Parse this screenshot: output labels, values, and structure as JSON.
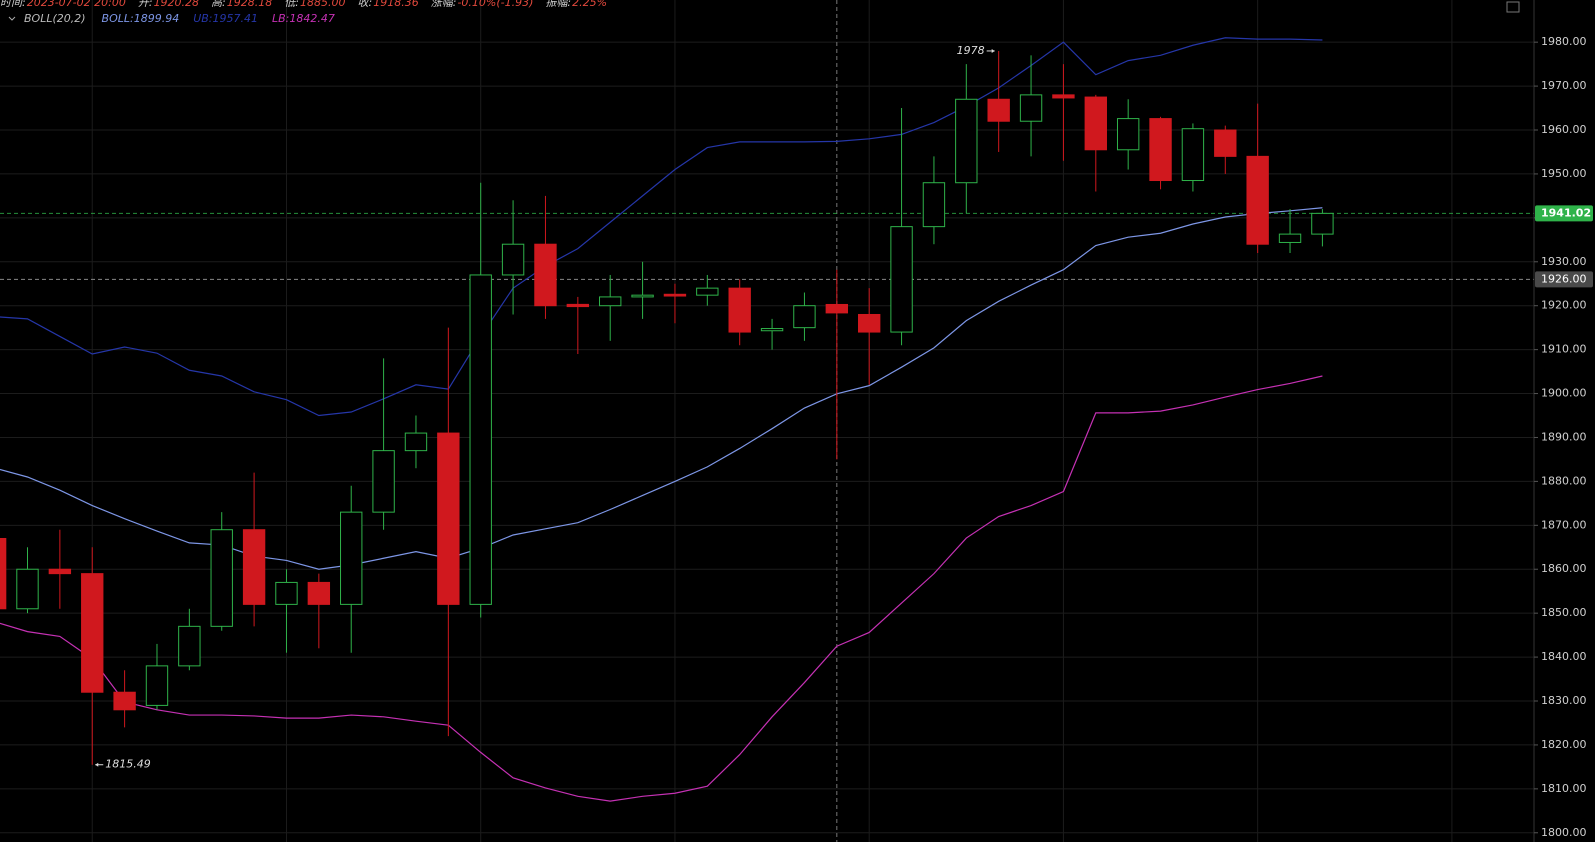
{
  "chart_data": {
    "type": "candlestick",
    "header": [
      [
        "时间:",
        "2023-07-02 20:00"
      ],
      [
        "开:",
        "1920.28"
      ],
      [
        "高:",
        "1928.18"
      ],
      [
        "低:",
        "1885.00"
      ],
      [
        "收:",
        "1918.36"
      ],
      [
        "涨幅:",
        "-0.10%(-1.93)"
      ],
      [
        "振幅:",
        "2.25%"
      ]
    ],
    "indicator": "BOLL(20,2)",
    "up_color": "#2fb34a",
    "down_color": "#d0181e",
    "open": [
      1867,
      1851,
      1860,
      1859,
      1832,
      1829,
      1838,
      1847,
      1869,
      1852,
      1857,
      1852,
      1873,
      1887,
      1891,
      1852,
      1927,
      1934,
      1920.3,
      1920,
      1922,
      1922.6,
      1922.4,
      1924,
      1914.3,
      1915,
      1920.28,
      1918,
      1914,
      1938,
      1948,
      1967,
      1962,
      1968,
      1967.5,
      1955.5,
      1962.6,
      1948.5,
      1960,
      1954,
      1934.4,
      1936.3
    ],
    "high": [
      1870,
      1865,
      1869,
      1865,
      1837,
      1843,
      1851,
      1873,
      1882,
      1860,
      1859,
      1879,
      1908,
      1895,
      1915,
      1948,
      1944,
      1945,
      1922,
      1927,
      1930,
      1925,
      1927,
      1926,
      1917,
      1923,
      1928.18,
      1924,
      1965,
      1954,
      1975,
      1978,
      1977,
      1975,
      1968,
      1967,
      1963,
      1961.5,
      1961,
      1966,
      1942,
      1942
    ],
    "low": [
      1848,
      1850,
      1851,
      1815.49,
      1824,
      1828,
      1837,
      1846,
      1847,
      1841,
      1842,
      1841,
      1869,
      1883,
      1822,
      1849,
      1918,
      1917,
      1909,
      1912,
      1917,
      1916,
      1920,
      1911,
      1910,
      1912,
      1885,
      1902,
      1911,
      1934,
      1941,
      1955,
      1954,
      1953,
      1946,
      1951,
      1946.5,
      1946,
      1950,
      1932,
      1932,
      1933.5
    ],
    "close": [
      1851,
      1860,
      1859,
      1832,
      1828,
      1838,
      1847,
      1869,
      1852,
      1857,
      1852,
      1873,
      1887,
      1891,
      1852,
      1927,
      1934,
      1920,
      1919.8,
      1922,
      1922.4,
      1922.2,
      1924,
      1914,
      1914.8,
      1920,
      1918.36,
      1914,
      1938,
      1948,
      1967,
      1962,
      1968,
      1967.3,
      1955.5,
      1962.6,
      1948.5,
      1960.3,
      1954,
      1934,
      1936.3,
      1941.02
    ],
    "bands": [
      {
        "legend": "BOLL:1899.94",
        "color": "#7d96e6",
        "values": [
          1883,
          1881,
          1878,
          1874.5,
          1871.5,
          1868.7,
          1866,
          1865.5,
          1863,
          1862,
          1860,
          1861,
          1862.5,
          1864,
          1862.5,
          1864.8,
          1867.8,
          1869.2,
          1870.6,
          1873.6,
          1876.8,
          1880,
          1883.3,
          1887.5,
          1892,
          1896.7,
          1899.94,
          1901.8,
          1906,
          1910.4,
          1916.6,
          1921,
          1924.7,
          1928.2,
          1933.7,
          1935.6,
          1936.5,
          1938.6,
          1940.2,
          1941,
          1941.6,
          1942.3
        ]
      },
      {
        "legend": "UB:1957.41",
        "color": "#2536a8",
        "values": [
          1917.5,
          1917,
          1913,
          1909,
          1910.6,
          1909.2,
          1905.3,
          1904,
          1900.4,
          1898.6,
          1895,
          1895.8,
          1898.8,
          1902,
          1901,
          1913,
          1924,
          1929,
          1933,
          1939,
          1945,
          1951,
          1956,
          1957.3,
          1957.3,
          1957.3,
          1957.41,
          1958,
          1959,
          1961.7,
          1965.4,
          1969.6,
          1974.7,
          1980,
          1972.6,
          1975.8,
          1977,
          1979.3,
          1981,
          1980.7,
          1980.7,
          1980.5
        ]
      },
      {
        "legend": "LB:1842.47",
        "color": "#c531b4",
        "values": [
          1848,
          1845.8,
          1844.7,
          1839.6,
          1829.8,
          1828,
          1826.8,
          1826.8,
          1826.6,
          1826.1,
          1826.1,
          1826.8,
          1826.4,
          1825.4,
          1824.5,
          1818.3,
          1812.5,
          1810.2,
          1808.3,
          1807.2,
          1808.3,
          1809,
          1810.6,
          1817.8,
          1826.4,
          1834.2,
          1842.47,
          1845.6,
          1852.3,
          1859,
          1867.1,
          1872,
          1874.5,
          1877.7,
          1895.6,
          1895.6,
          1896,
          1897.4,
          1899.2,
          1900.9,
          1902.3,
          1904
        ]
      }
    ],
    "ylim": [
      1797.9,
      1989.6
    ],
    "yticks": [
      {
        "value": 1800,
        "label": "1800.00"
      },
      {
        "value": 1810,
        "label": "1810.00"
      },
      {
        "value": 1820,
        "label": "1820.00"
      },
      {
        "value": 1830,
        "label": "1830.00"
      },
      {
        "value": 1840,
        "label": "1840.00"
      },
      {
        "value": 1850,
        "label": "1850.00"
      },
      {
        "value": 1860,
        "label": "1860.00"
      },
      {
        "value": 1870,
        "label": "1870.00"
      },
      {
        "value": 1880,
        "label": "1880.00"
      },
      {
        "value": 1890,
        "label": "1890.00"
      },
      {
        "value": 1900,
        "label": "1900.00"
      },
      {
        "value": 1910,
        "label": "1910.00"
      },
      {
        "value": 1920,
        "label": "1920.00"
      },
      {
        "value": 1930,
        "label": "1930.00"
      },
      {
        "value": 1940,
        "label": "1940.00"
      },
      {
        "value": 1950,
        "label": "1950.00"
      },
      {
        "value": 1960,
        "label": "1960.00"
      },
      {
        "value": 1970,
        "label": "1970.00"
      },
      {
        "value": 1980,
        "label": "1980.00"
      }
    ],
    "grid": true,
    "last_price": {
      "value": 1941.02,
      "label": "1941.02"
    },
    "crosshair_price": {
      "value": 1926,
      "label": "1926.00"
    },
    "high_mark": 1978,
    "low_mark": 1815.49
  }
}
